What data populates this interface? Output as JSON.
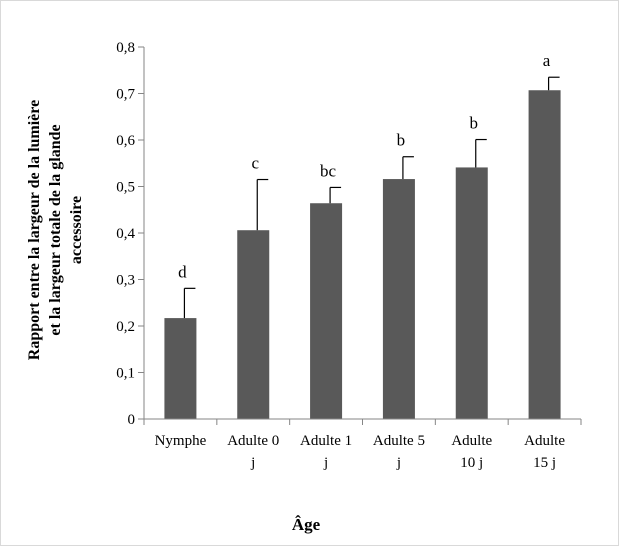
{
  "chart_data": {
    "type": "bar",
    "title": "",
    "xlabel": "Âge",
    "ylabel_lines": [
      "Rapport entre  la largeur de la lumière",
      "et la largeur totale de la glande",
      "accessoire"
    ],
    "ylim": [
      0,
      0.8
    ],
    "yticks": [
      "0",
      "0,1",
      "0,2",
      "0,3",
      "0,4",
      "0,5",
      "0,6",
      "0,7",
      "0,8"
    ],
    "grid": false,
    "legend": "none",
    "bar_color": "#595959",
    "categories": [
      {
        "lines": [
          "Nymphe"
        ]
      },
      {
        "lines": [
          "Adulte 0",
          "j"
        ]
      },
      {
        "lines": [
          "Adulte 1",
          "j"
        ]
      },
      {
        "lines": [
          "Adulte 5",
          "j"
        ]
      },
      {
        "lines": [
          "Adulte",
          "10 j"
        ]
      },
      {
        "lines": [
          "Adulte",
          "15 j"
        ]
      }
    ],
    "values": [
      0.217,
      0.406,
      0.464,
      0.516,
      0.541,
      0.707
    ],
    "errors": [
      0.064,
      0.109,
      0.034,
      0.048,
      0.06,
      0.028
    ],
    "significance_letters": [
      "d",
      "c",
      "bc",
      "b",
      "b",
      "a"
    ]
  }
}
